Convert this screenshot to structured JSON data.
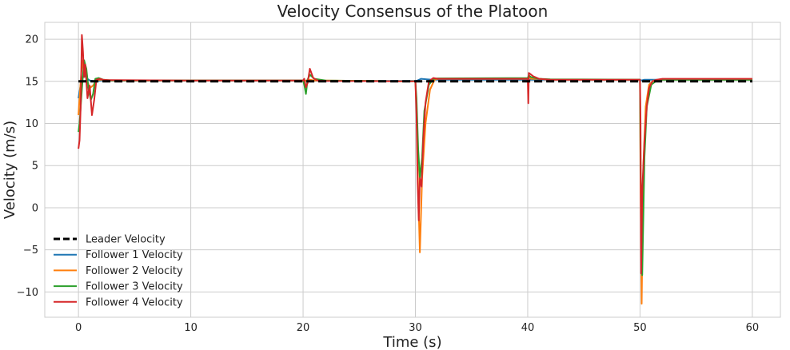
{
  "chart_data": {
    "type": "line",
    "title": "Velocity Consensus of the Platoon",
    "xlabel": "Time (s)",
    "ylabel": "Velocity (m/s)",
    "xlim": [
      -3,
      62.5
    ],
    "ylim": [
      -13,
      22
    ],
    "xticks": [
      0,
      10,
      20,
      30,
      40,
      50,
      60
    ],
    "yticks": [
      -10,
      -5,
      0,
      5,
      10,
      15,
      20
    ],
    "grid": true,
    "legend_position": "lower-left",
    "series": [
      {
        "name": "Leader Velocity",
        "color": "#000000",
        "style": "dashed",
        "x": [
          0,
          60
        ],
        "y": [
          15,
          15
        ]
      },
      {
        "name": "Follower 1 Velocity",
        "color": "#1f77b4",
        "style": "solid",
        "x": [
          0,
          0.15,
          0.3,
          0.5,
          0.7,
          1.0,
          1.5,
          2.0,
          2.5,
          3.0,
          10,
          20,
          20.1,
          20.3,
          20.5,
          21,
          22,
          30,
          30.2,
          30.5,
          31,
          31.5,
          32,
          40,
          40.1,
          40.3,
          41,
          50,
          50.1,
          50.4,
          51,
          52,
          60
        ],
        "y": [
          13,
          14.2,
          15.3,
          15.8,
          15.4,
          15.1,
          15.0,
          15.1,
          15.1,
          15.1,
          15.1,
          15.1,
          15.0,
          15.1,
          15.1,
          15.1,
          15.05,
          15.05,
          15.1,
          15.3,
          15.25,
          15.2,
          15.2,
          15.2,
          15.15,
          15.2,
          15.2,
          15.2,
          15.1,
          15.2,
          15.2,
          15.2,
          15.2
        ]
      },
      {
        "name": "Follower 2 Velocity",
        "color": "#ff7f0e",
        "style": "solid",
        "x": [
          0,
          0.1,
          0.25,
          0.4,
          0.6,
          0.8,
          1.0,
          1.3,
          1.6,
          2.0,
          2.5,
          3.0,
          10,
          20,
          20.1,
          20.3,
          20.6,
          21,
          22,
          30,
          30.1,
          30.25,
          30.4,
          30.6,
          30.9,
          31.3,
          31.7,
          32,
          35,
          40,
          40.1,
          40.3,
          41,
          42,
          50,
          50.05,
          50.15,
          50.3,
          50.5,
          50.8,
          51.2,
          52,
          60
        ],
        "y": [
          11,
          13,
          16,
          17.5,
          16.5,
          15,
          14.2,
          14.5,
          15.1,
          15.2,
          15.15,
          15.1,
          15.1,
          15.1,
          15.0,
          15.1,
          15.2,
          15.1,
          15.1,
          15.0,
          12,
          2,
          -5.3,
          3.5,
          10,
          14,
          15.2,
          15.3,
          15.3,
          15.3,
          15.5,
          15.3,
          15.3,
          15.2,
          15.2,
          2,
          -11.4,
          5,
          12,
          14.6,
          15.1,
          15.2,
          15.2
        ]
      },
      {
        "name": "Follower 3 Velocity",
        "color": "#2ca02c",
        "style": "solid",
        "x": [
          0,
          0.1,
          0.3,
          0.5,
          0.7,
          0.9,
          1.1,
          1.3,
          1.5,
          1.8,
          2.2,
          2.6,
          3.0,
          10,
          20,
          20.1,
          20.25,
          20.4,
          20.6,
          21,
          22,
          30,
          30.1,
          30.25,
          30.4,
          30.6,
          30.8,
          31.2,
          31.6,
          32,
          40,
          40.1,
          40.3,
          41,
          42,
          50,
          50.05,
          50.2,
          50.4,
          50.6,
          51,
          51.5,
          52,
          60
        ],
        "y": [
          9,
          10,
          14,
          17.5,
          16.5,
          14,
          12.8,
          13.5,
          15.3,
          15.4,
          15.2,
          15.15,
          15.1,
          15.1,
          15.1,
          14.6,
          13.5,
          15.2,
          15.8,
          15.3,
          15.1,
          15.0,
          13,
          7,
          3.5,
          6,
          11.5,
          14.6,
          15.3,
          15.35,
          15.4,
          15.7,
          15.5,
          15.3,
          15.25,
          15.2,
          5,
          -8,
          6,
          12,
          14.6,
          15.1,
          15.2,
          15.2
        ]
      },
      {
        "name": "Follower 4 Velocity",
        "color": "#d62728",
        "style": "solid",
        "x": [
          0,
          0.1,
          0.2,
          0.3,
          0.4,
          0.5,
          0.6,
          0.8,
          1.0,
          1.2,
          1.4,
          1.6,
          1.9,
          2.2,
          2.6,
          3.0,
          10,
          20,
          20.1,
          20.25,
          20.4,
          20.6,
          20.9,
          21.3,
          22,
          30,
          30.1,
          30.2,
          30.3,
          30.4,
          30.55,
          30.7,
          30.9,
          31.2,
          31.6,
          32,
          35,
          40,
          40.05,
          40.1,
          40.2,
          40.5,
          41,
          42,
          50,
          50.05,
          50.1,
          50.2,
          50.4,
          50.6,
          50.8,
          51.1,
          51.5,
          52,
          60
        ],
        "y": [
          7,
          8,
          12,
          20.5,
          18.5,
          15.5,
          17,
          13,
          14.5,
          11,
          12.8,
          15.2,
          15.3,
          15.2,
          15.15,
          15.15,
          15.1,
          15.1,
          15.3,
          14.3,
          14.8,
          16.5,
          15.4,
          15.1,
          15.05,
          15.0,
          11,
          3,
          -1.5,
          3.5,
          2.5,
          8,
          12.5,
          15,
          15.4,
          15.3,
          15.3,
          15.3,
          12.4,
          16,
          15.9,
          15.6,
          15.3,
          15.2,
          15.2,
          10,
          -7.8,
          2,
          8,
          12,
          14.2,
          15.0,
          15.2,
          15.3,
          15.3
        ]
      }
    ]
  }
}
